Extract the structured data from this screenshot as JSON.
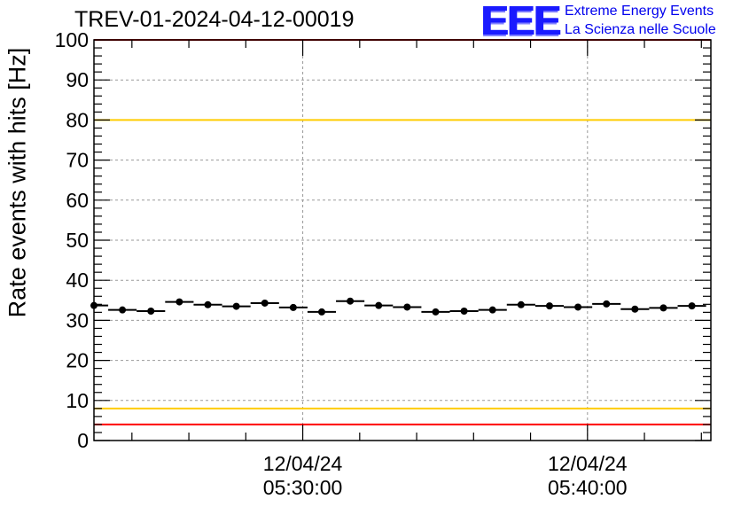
{
  "title": "TREV-01-2024-04-12-00019",
  "logo": {
    "mark": "EEE",
    "line1": "Extreme Energy Events",
    "line2": "La Scienza nelle Scuole"
  },
  "chart_data": {
    "type": "scatter",
    "ylabel": "Rate events with hits [Hz]",
    "ylim": [
      0,
      100
    ],
    "yticks": [
      0,
      10,
      20,
      30,
      40,
      50,
      60,
      70,
      80,
      90,
      100
    ],
    "xlim": [
      "2024-04-12 05:22:40",
      "2024-04-12 05:44:20"
    ],
    "xticks": [
      {
        "date": "12/04/24",
        "time": "05:30:00",
        "value": "2024-04-12 05:30:00"
      },
      {
        "date": "12/04/24",
        "time": "05:40:00",
        "value": "2024-04-12 05:40:00"
      }
    ],
    "grid": true,
    "reference_lines": [
      {
        "y": 100,
        "color": "#ff0000"
      },
      {
        "y": 80,
        "color": "#ffcc00"
      },
      {
        "y": 8,
        "color": "#ffcc00"
      },
      {
        "y": 4,
        "color": "#ff0000"
      }
    ],
    "series": [
      {
        "marker_color": "#000000",
        "x": [
          "05:22:40",
          "05:23:40",
          "05:24:40",
          "05:25:40",
          "05:26:40",
          "05:27:40",
          "05:28:40",
          "05:29:40",
          "05:30:40",
          "05:31:40",
          "05:32:40",
          "05:33:40",
          "05:34:40",
          "05:35:40",
          "05:36:40",
          "05:37:40",
          "05:38:40",
          "05:39:40",
          "05:40:40",
          "05:41:40",
          "05:42:40",
          "05:43:40"
        ],
        "y": [
          33.7,
          32.6,
          32.3,
          34.6,
          33.9,
          33.5,
          34.3,
          33.2,
          32.1,
          34.8,
          33.7,
          33.3,
          32.1,
          32.3,
          32.6,
          33.9,
          33.6,
          33.3,
          34.1,
          32.8,
          33.1,
          33.6
        ],
        "bin_width_seconds": 60
      }
    ]
  }
}
